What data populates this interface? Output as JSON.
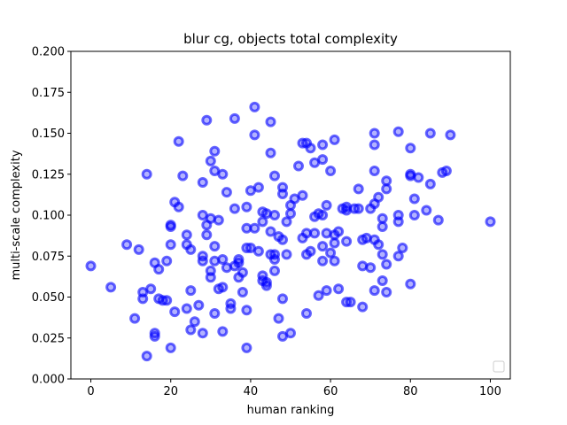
{
  "chart_data": {
    "type": "scatter",
    "title": "blur cg, objects total complexity",
    "xlabel": "human ranking",
    "ylabel": "multi-scale complexity",
    "xlim": [
      -5,
      105
    ],
    "ylim": [
      0,
      0.2
    ],
    "xticks": [
      "0",
      "20",
      "40",
      "60",
      "80",
      "100"
    ],
    "yticks": [
      "0.000",
      "0.025",
      "0.050",
      "0.075",
      "0.100",
      "0.125",
      "0.150",
      "0.175",
      "0.200"
    ],
    "grid": false,
    "legend": "lower-right (empty)",
    "color": "#0000ff",
    "points": [
      [
        0,
        0.069
      ],
      [
        5,
        0.056
      ],
      [
        9,
        0.082
      ],
      [
        11,
        0.037
      ],
      [
        12,
        0.079
      ],
      [
        13,
        0.053
      ],
      [
        13,
        0.049
      ],
      [
        14,
        0.125
      ],
      [
        14,
        0.014
      ],
      [
        15,
        0.055
      ],
      [
        16,
        0.071
      ],
      [
        16,
        0.028
      ],
      [
        16,
        0.026
      ],
      [
        17,
        0.067
      ],
      [
        17,
        0.049
      ],
      [
        18,
        0.048
      ],
      [
        19,
        0.072
      ],
      [
        19,
        0.048
      ],
      [
        20,
        0.094
      ],
      [
        20,
        0.093
      ],
      [
        20,
        0.082
      ],
      [
        20,
        0.019
      ],
      [
        21,
        0.108
      ],
      [
        21,
        0.041
      ],
      [
        22,
        0.145
      ],
      [
        22,
        0.105
      ],
      [
        23,
        0.124
      ],
      [
        24,
        0.088
      ],
      [
        24,
        0.082
      ],
      [
        24,
        0.043
      ],
      [
        25,
        0.079
      ],
      [
        25,
        0.054
      ],
      [
        25,
        0.03
      ],
      [
        26,
        0.035
      ],
      [
        27,
        0.045
      ],
      [
        28,
        0.12
      ],
      [
        28,
        0.1
      ],
      [
        28,
        0.075
      ],
      [
        28,
        0.072
      ],
      [
        28,
        0.028
      ],
      [
        29,
        0.158
      ],
      [
        29,
        0.094
      ],
      [
        29,
        0.088
      ],
      [
        30,
        0.133
      ],
      [
        30,
        0.098
      ],
      [
        30,
        0.066
      ],
      [
        30,
        0.062
      ],
      [
        31,
        0.139
      ],
      [
        31,
        0.127
      ],
      [
        31,
        0.081
      ],
      [
        31,
        0.072
      ],
      [
        31,
        0.04
      ],
      [
        32,
        0.097
      ],
      [
        32,
        0.055
      ],
      [
        33,
        0.125
      ],
      [
        33,
        0.073
      ],
      [
        33,
        0.056
      ],
      [
        33,
        0.029
      ],
      [
        34,
        0.114
      ],
      [
        34,
        0.068
      ],
      [
        35,
        0.046
      ],
      [
        35,
        0.043
      ],
      [
        36,
        0.159
      ],
      [
        36,
        0.104
      ],
      [
        36,
        0.069
      ],
      [
        37,
        0.073
      ],
      [
        37,
        0.071
      ],
      [
        37,
        0.062
      ],
      [
        38,
        0.065
      ],
      [
        38,
        0.053
      ],
      [
        39,
        0.105
      ],
      [
        39,
        0.092
      ],
      [
        39,
        0.08
      ],
      [
        39,
        0.042
      ],
      [
        39,
        0.019
      ],
      [
        40,
        0.115
      ],
      [
        40,
        0.08
      ],
      [
        41,
        0.166
      ],
      [
        41,
        0.149
      ],
      [
        41,
        0.092
      ],
      [
        42,
        0.117
      ],
      [
        42,
        0.078
      ],
      [
        43,
        0.102
      ],
      [
        43,
        0.096
      ],
      [
        43,
        0.063
      ],
      [
        43,
        0.06
      ],
      [
        44,
        0.101
      ],
      [
        44,
        0.059
      ],
      [
        44,
        0.057
      ],
      [
        45,
        0.157
      ],
      [
        45,
        0.138
      ],
      [
        45,
        0.09
      ],
      [
        45,
        0.076
      ],
      [
        46,
        0.124
      ],
      [
        46,
        0.1
      ],
      [
        46,
        0.076
      ],
      [
        46,
        0.073
      ],
      [
        46,
        0.066
      ],
      [
        47,
        0.087
      ],
      [
        47,
        0.037
      ],
      [
        48,
        0.117
      ],
      [
        48,
        0.113
      ],
      [
        48,
        0.085
      ],
      [
        48,
        0.049
      ],
      [
        48,
        0.026
      ],
      [
        49,
        0.096
      ],
      [
        49,
        0.076
      ],
      [
        50,
        0.106
      ],
      [
        50,
        0.101
      ],
      [
        50,
        0.028
      ],
      [
        51,
        0.11
      ],
      [
        52,
        0.13
      ],
      [
        53,
        0.144
      ],
      [
        53,
        0.112
      ],
      [
        53,
        0.086
      ],
      [
        54,
        0.144
      ],
      [
        54,
        0.089
      ],
      [
        54,
        0.076
      ],
      [
        54,
        0.04
      ],
      [
        55,
        0.141
      ],
      [
        55,
        0.078
      ],
      [
        56,
        0.132
      ],
      [
        56,
        0.099
      ],
      [
        56,
        0.089
      ],
      [
        57,
        0.101
      ],
      [
        57,
        0.051
      ],
      [
        58,
        0.143
      ],
      [
        58,
        0.134
      ],
      [
        58,
        0.1
      ],
      [
        58,
        0.081
      ],
      [
        58,
        0.072
      ],
      [
        59,
        0.106
      ],
      [
        59,
        0.089
      ],
      [
        59,
        0.054
      ],
      [
        60,
        0.127
      ],
      [
        60,
        0.077
      ],
      [
        61,
        0.146
      ],
      [
        61,
        0.088
      ],
      [
        61,
        0.083
      ],
      [
        61,
        0.072
      ],
      [
        62,
        0.09
      ],
      [
        62,
        0.055
      ],
      [
        63,
        0.104
      ],
      [
        64,
        0.105
      ],
      [
        64,
        0.103
      ],
      [
        64,
        0.084
      ],
      [
        64,
        0.047
      ],
      [
        65,
        0.047
      ],
      [
        66,
        0.104
      ],
      [
        67,
        0.116
      ],
      [
        67,
        0.104
      ],
      [
        68,
        0.085
      ],
      [
        68,
        0.069
      ],
      [
        68,
        0.044
      ],
      [
        69,
        0.086
      ],
      [
        70,
        0.104
      ],
      [
        70,
        0.068
      ],
      [
        71,
        0.15
      ],
      [
        71,
        0.143
      ],
      [
        71,
        0.127
      ],
      [
        71,
        0.107
      ],
      [
        71,
        0.085
      ],
      [
        71,
        0.054
      ],
      [
        72,
        0.111
      ],
      [
        72,
        0.082
      ],
      [
        73,
        0.098
      ],
      [
        73,
        0.093
      ],
      [
        73,
        0.076
      ],
      [
        73,
        0.06
      ],
      [
        74,
        0.121
      ],
      [
        74,
        0.116
      ],
      [
        74,
        0.07
      ],
      [
        74,
        0.053
      ],
      [
        77,
        0.151
      ],
      [
        77,
        0.1
      ],
      [
        77,
        0.096
      ],
      [
        77,
        0.075
      ],
      [
        78,
        0.08
      ],
      [
        80,
        0.125
      ],
      [
        80,
        0.124
      ],
      [
        80,
        0.058
      ],
      [
        80,
        0.141
      ],
      [
        81,
        0.11
      ],
      [
        81,
        0.1
      ],
      [
        82,
        0.123
      ],
      [
        84,
        0.103
      ],
      [
        85,
        0.15
      ],
      [
        85,
        0.119
      ],
      [
        87,
        0.097
      ],
      [
        88,
        0.126
      ],
      [
        89,
        0.127
      ],
      [
        90,
        0.149
      ],
      [
        100,
        0.096
      ]
    ]
  }
}
